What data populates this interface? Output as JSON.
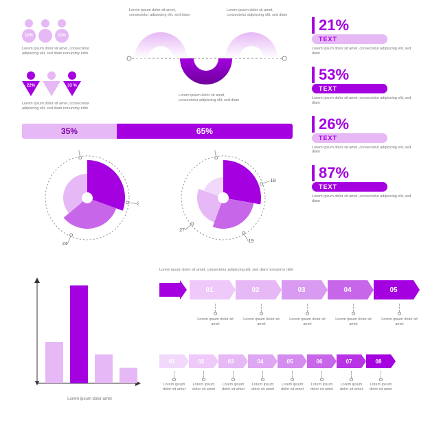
{
  "palette": {
    "primary": "#a400e0",
    "primary_dark": "#7a00a8",
    "light": "#e6b8f5",
    "lighter": "#f2d8fb",
    "pale": "#f7eafc",
    "text": "#555555",
    "grey": "#888888"
  },
  "lorem_short": "Lorem ipsum dolor sit amet",
  "lorem_med": "Lorem ipsum dolor sit amet, consectetur adipiscing elit, sed diam",
  "lorem_long": "Lorem ipsum dolor sit amet, consectetur adipiscing elit, sed diam nonummy nibh",
  "people_group_a": {
    "marker": "circle",
    "items": [
      {
        "value": "12%",
        "color_head": "#e6b8f5",
        "color_body": "#e6b8f5"
      },
      {
        "value": "",
        "color_head": "#e6b8f5",
        "color_body": "#e6b8f5"
      },
      {
        "value": "11%",
        "color_head": "#e6b8f5",
        "color_body": "#e6b8f5"
      }
    ]
  },
  "people_group_b": {
    "marker": "triangle",
    "items": [
      {
        "value": "22%",
        "color_head": "#a400e0",
        "color_body": "#a400e0"
      },
      {
        "value": "",
        "color_head": "#e6b8f5",
        "color_body": "#e6b8f5"
      },
      {
        "value": "33 %",
        "color_head": "#a400e0",
        "color_body": "#a400e0"
      }
    ]
  },
  "wave_labels": {
    "left": "",
    "right": ""
  },
  "progress_bar": {
    "segments": [
      {
        "value": "35%",
        "width_pct": 35,
        "bg": "#e6b8f5",
        "fg": "#7a00a8"
      },
      {
        "value": "65%",
        "width_pct": 65,
        "bg": "#a400e0",
        "fg": "#ffffff"
      }
    ]
  },
  "stats": [
    {
      "value": "21%",
      "label": "TEXT",
      "accent": "#a400e0",
      "pill_bg": "#e6b8f5",
      "pill_fg": "#a400e0"
    },
    {
      "value": "53%",
      "label": "TEXT",
      "accent": "#a400e0",
      "pill_bg": "#a400e0",
      "pill_fg": "#ffffff"
    },
    {
      "value": "26%",
      "label": "TEXT",
      "accent": "#a400e0",
      "pill_bg": "#e6b8f5",
      "pill_fg": "#a400e0"
    },
    {
      "value": "87%",
      "label": "TEXT",
      "accent": "#a400e0",
      "pill_bg": "#a400e0",
      "pill_fg": "#ffffff"
    }
  ],
  "radial_left": {
    "callouts": [
      "22",
      "24",
      "24"
    ],
    "slices": [
      {
        "start": -90,
        "end": 20,
        "r": 55,
        "color": "#a400e0"
      },
      {
        "start": 20,
        "end": 140,
        "r": 45,
        "color": "#c866ea"
      },
      {
        "start": 140,
        "end": 270,
        "r": 35,
        "color": "#e6b8f5"
      }
    ]
  },
  "radial_right": {
    "callouts": [
      "22",
      "18",
      "19",
      "27"
    ],
    "slices": [
      {
        "start": -90,
        "end": 10,
        "r": 55,
        "color": "#a400e0"
      },
      {
        "start": 10,
        "end": 110,
        "r": 45,
        "color": "#c866ea"
      },
      {
        "start": 110,
        "end": 200,
        "r": 38,
        "color": "#e6b8f5"
      },
      {
        "start": 200,
        "end": 270,
        "r": 30,
        "color": "#f2d8fb"
      }
    ]
  },
  "bar_chart": {
    "ylim": [
      0,
      100
    ],
    "bars": [
      {
        "h": 40,
        "color": "#e6b8f5"
      },
      {
        "h": 95,
        "color": "#a400e0"
      },
      {
        "h": 28,
        "color": "#e6b8f5"
      },
      {
        "h": 15,
        "color": "#e6b8f5"
      }
    ],
    "xlabel": "Lorem ipsum dolor amet"
  },
  "big_steps": {
    "lead_arrow_color": "#a400e0",
    "items": [
      {
        "num": "01",
        "bg": "#efc9fa"
      },
      {
        "num": "02",
        "bg": "#e6b8f5"
      },
      {
        "num": "03",
        "bg": "#d99af1"
      },
      {
        "num": "04",
        "bg": "#c866ea"
      },
      {
        "num": "05",
        "bg": "#a400e0"
      }
    ]
  },
  "mini_steps": {
    "items": [
      {
        "num": "01",
        "bg": "#f2d8fb"
      },
      {
        "num": "02",
        "bg": "#efc9fa"
      },
      {
        "num": "03",
        "bg": "#e6b8f5"
      },
      {
        "num": "04",
        "bg": "#dfa6f3"
      },
      {
        "num": "05",
        "bg": "#d58cef"
      },
      {
        "num": "06",
        "bg": "#c866ea"
      },
      {
        "num": "07",
        "bg": "#b733e5"
      },
      {
        "num": "08",
        "bg": "#a400e0"
      }
    ]
  }
}
